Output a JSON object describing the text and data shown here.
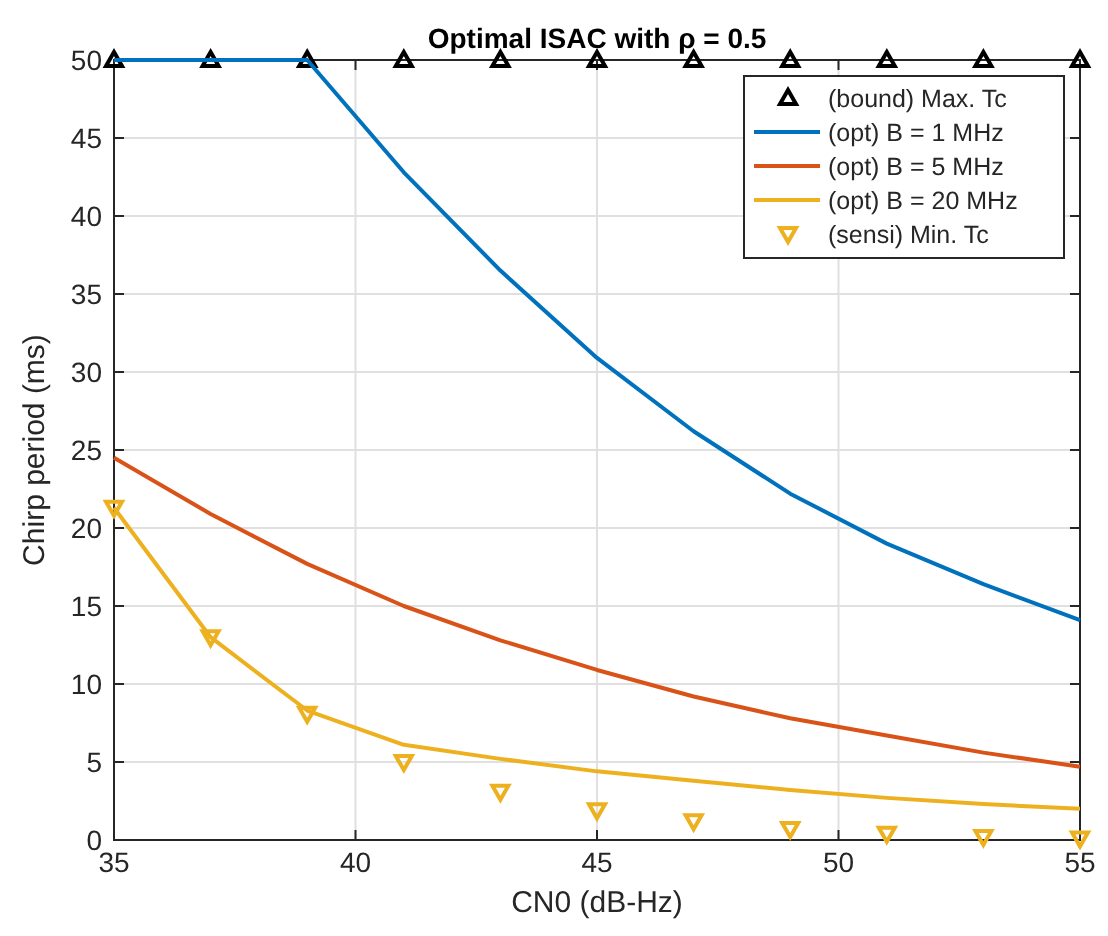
{
  "chart_data": {
    "type": "line",
    "title": "Optimal ISAC with ρ = 0.5",
    "xlabel": "CN0 (dB-Hz)",
    "ylabel": "Chirp period (ms)",
    "x": [
      35,
      37,
      39,
      41,
      43,
      45,
      47,
      49,
      51,
      53,
      55
    ],
    "xlim": [
      35,
      55
    ],
    "xticks": [
      35,
      40,
      45,
      50,
      55
    ],
    "ylim": [
      0,
      50
    ],
    "yticks": [
      0,
      5,
      10,
      15,
      20,
      25,
      30,
      35,
      40,
      45,
      50
    ],
    "grid": true,
    "legend": "top right",
    "series": [
      {
        "name": "(bound) Max. Tc",
        "type": "scatter",
        "marker": "triangle",
        "color": "#000000",
        "values": [
          50,
          50,
          50,
          50,
          50,
          50,
          50,
          50,
          50,
          50,
          50
        ]
      },
      {
        "name": "(opt) B = 1 MHz",
        "color": "#0072bd",
        "values": [
          50,
          50,
          50,
          42.8,
          36.5,
          30.9,
          26.2,
          22.2,
          19.0,
          16.4,
          14.1
        ]
      },
      {
        "name": "(opt) B = 5 MHz",
        "color": "#d95319",
        "values": [
          24.5,
          20.9,
          17.7,
          15.0,
          12.8,
          10.9,
          9.2,
          7.8,
          6.7,
          5.6,
          4.7
        ]
      },
      {
        "name": "(opt) B = 20 MHz",
        "color": "#edb120",
        "values": [
          21.3,
          13.0,
          8.3,
          6.1,
          5.2,
          4.4,
          3.8,
          3.2,
          2.7,
          2.3,
          2.0
        ]
      },
      {
        "name": "(sensi) Min. Tc",
        "type": "scatter",
        "marker": "triangle-down",
        "color": "#edb120",
        "values": [
          21.3,
          13.0,
          8.1,
          5.0,
          3.1,
          1.9,
          1.2,
          0.7,
          0.4,
          0.2,
          0.1
        ]
      }
    ]
  }
}
